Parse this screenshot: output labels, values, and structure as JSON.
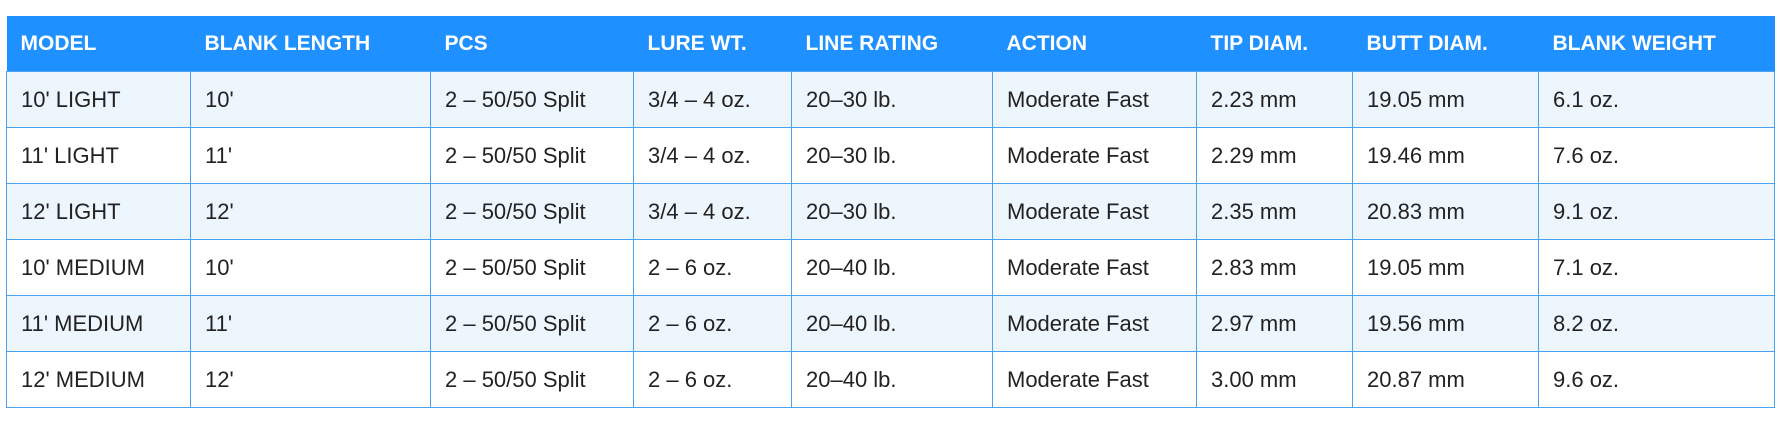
{
  "table": {
    "header": [
      "MODEL",
      "BLANK LENGTH",
      "PCS",
      "LURE WT.",
      "LINE RATING",
      "ACTION",
      "TIP DIAM.",
      "BUTT DIAM.",
      "BLANK WEIGHT"
    ],
    "rows": [
      [
        "10' LIGHT",
        "10'",
        "2 – 50/50 Split",
        "3/4 – 4 oz.",
        "20–30 lb.",
        "Moderate Fast",
        "2.23 mm",
        "19.05 mm",
        "6.1 oz."
      ],
      [
        "11' LIGHT",
        "11'",
        "2 – 50/50 Split",
        "3/4 – 4 oz.",
        "20–30 lb.",
        "Moderate Fast",
        "2.29 mm",
        "19.46 mm",
        "7.6 oz."
      ],
      [
        "12' LIGHT",
        "12'",
        "2 – 50/50 Split",
        "3/4 – 4 oz.",
        "20–30 lb.",
        "Moderate Fast",
        "2.35 mm",
        "20.83 mm",
        "9.1 oz."
      ],
      [
        "10' MEDIUM",
        "10'",
        "2 – 50/50 Split",
        "2 – 6 oz.",
        "20–40 lb.",
        "Moderate Fast",
        "2.83 mm",
        "19.05 mm",
        "7.1 oz."
      ],
      [
        "11' MEDIUM",
        "11'",
        "2 – 50/50 Split",
        "2 – 6 oz.",
        "20–40 lb.",
        "Moderate Fast",
        "2.97 mm",
        "19.56 mm",
        "8.2 oz."
      ],
      [
        "12' MEDIUM",
        "12'",
        "2 – 50/50 Split",
        "2 – 6 oz.",
        "20–40 lb.",
        "Moderate Fast",
        "3.00 mm",
        "20.87 mm",
        "9.6 oz."
      ]
    ]
  }
}
